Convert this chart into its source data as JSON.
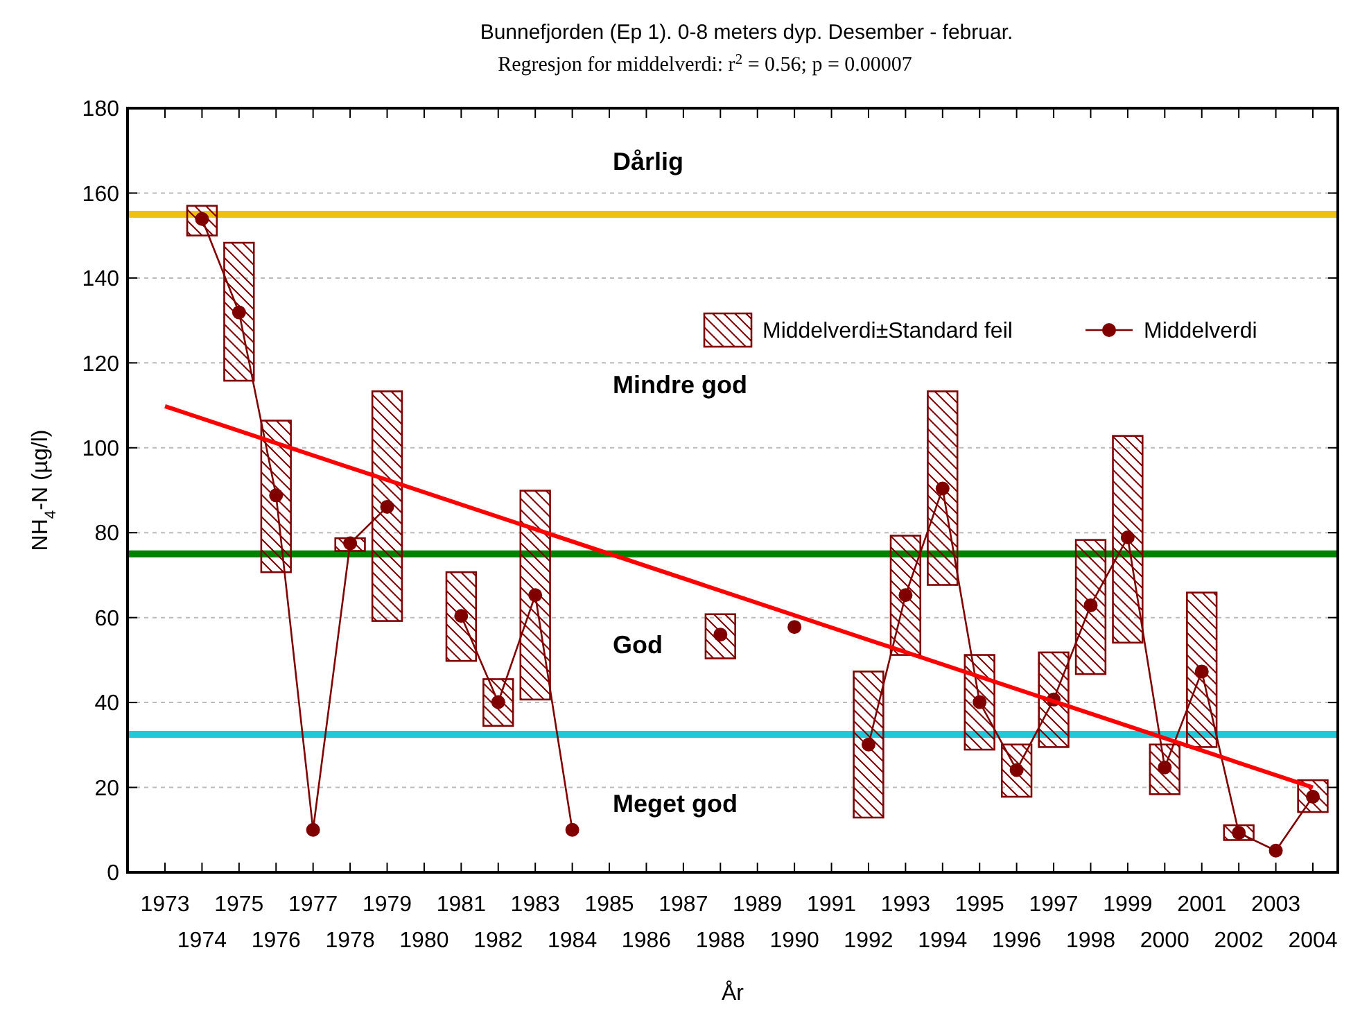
{
  "chart_data": {
    "type": "line",
    "title": "Bunnefjorden (Ep 1). 0-8 meters dyp. Desember - februar.",
    "subtitle": "Regresjon for middelverdi:  r$^{2}$ = 0.56;  p = 0.00007",
    "xlabel": "År",
    "ylabel": "NH$_{4}$-N (µg/l)",
    "categories": [
      "1973",
      "1974",
      "1975",
      "1976",
      "1977",
      "1978",
      "1979",
      "1980",
      "1981",
      "1982",
      "1983",
      "1984",
      "1985",
      "1986",
      "1987",
      "1988",
      "1989",
      "1990",
      "1991",
      "1992",
      "1993",
      "1994",
      "1995",
      "1996",
      "1997",
      "1998",
      "1999",
      "2000",
      "2001",
      "2002",
      "2003",
      "2004"
    ],
    "series": [
      {
        "name": "Middelverdi±Standard feil",
        "type": "bar",
        "color": "#800000",
        "base": [
          null,
          150,
          115.8,
          70.7,
          null,
          75.7,
          59.2,
          null,
          49.8,
          34.5,
          40.7,
          null,
          null,
          null,
          null,
          50.4,
          null,
          null,
          null,
          12.9,
          51.2,
          67.7,
          28.9,
          17.8,
          29.5,
          46.7,
          54.1,
          18.4,
          29.5,
          7.6,
          null,
          14.2
        ],
        "values": [
          null,
          7,
          32.5,
          35.7,
          null,
          3,
          54.1,
          null,
          20.9,
          11,
          49.2,
          null,
          null,
          null,
          null,
          10.4,
          null,
          null,
          null,
          34.4,
          28.1,
          45.6,
          22.3,
          12.3,
          22.3,
          31.6,
          48.7,
          11.7,
          36.4,
          3.5,
          null,
          7.5
        ]
      },
      {
        "name": "Middelverdi",
        "color": "#800000",
        "marker": "circle",
        "values": [
          null,
          153.9,
          131.9,
          88.8,
          10,
          77.5,
          86.1,
          null,
          60.4,
          40.1,
          65.3,
          10,
          null,
          null,
          null,
          56,
          null,
          57.8,
          null,
          30.1,
          65.3,
          90.4,
          40.1,
          24.1,
          40.7,
          62.9,
          78.9,
          24.7,
          47.3,
          9.3,
          5.1,
          17.8
        ]
      },
      {
        "type": "line",
        "color": "#ff0000",
        "marker": "none",
        "values": [
          109.8,
          null,
          null,
          null,
          null,
          null,
          null,
          null,
          null,
          null,
          null,
          null,
          null,
          null,
          null,
          null,
          null,
          null,
          null,
          null,
          null,
          null,
          null,
          null,
          null,
          null,
          null,
          null,
          null,
          null,
          null,
          20
        ]
      }
    ],
    "ylim": [
      0,
      180
    ],
    "yticks": [
      0,
      20,
      40,
      60,
      80,
      100,
      120,
      140,
      160,
      180
    ],
    "grid": "y",
    "legend": "top right",
    "ref_lines": [
      {
        "axis": "y",
        "value": 155,
        "color": "#f0c010"
      },
      {
        "axis": "y",
        "value": 75,
        "color": "#008000"
      },
      {
        "axis": "y",
        "value": 32.5,
        "color": "#20c8d8"
      }
    ],
    "annotations": [
      "Dårlig",
      "Mindre god",
      "God",
      "Meget god"
    ]
  }
}
